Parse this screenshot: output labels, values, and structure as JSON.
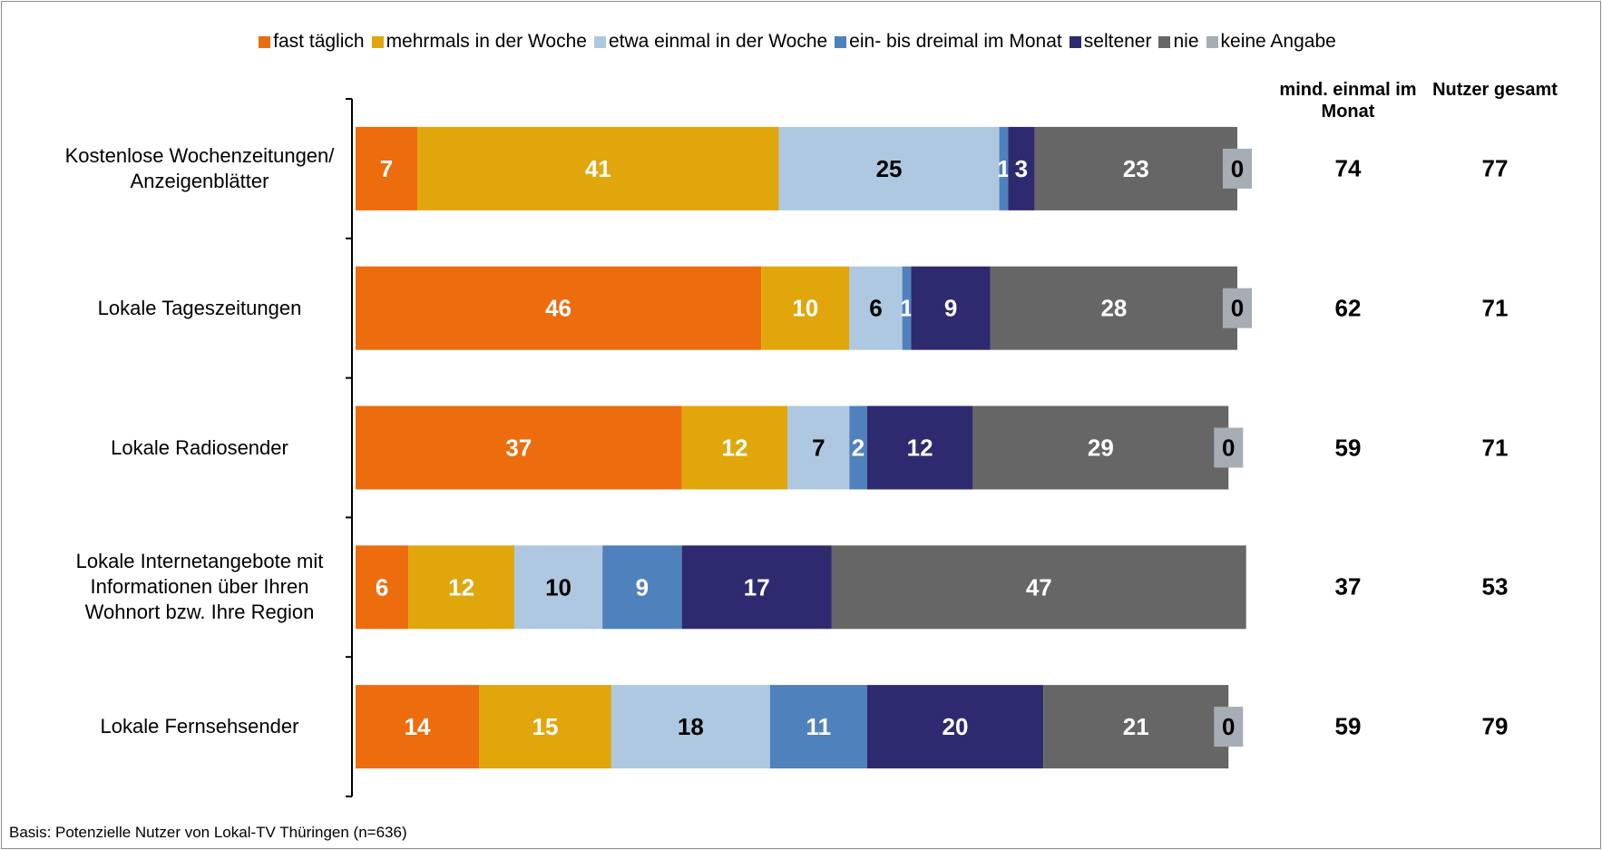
{
  "chart_data": {
    "type": "stacked_bar_horizontal",
    "categories": [
      "Kostenlose Wochenzeitungen/ Anzeigenblätter",
      "Lokale Tageszeitungen",
      "Lokale Radiosender",
      "Lokale Internetangebote mit Informationen über Ihren Wohnort bzw. Ihre Region",
      "Lokale Fernsehsender"
    ],
    "xlim": [
      0,
      100
    ],
    "series": [
      {
        "name": "fast täglich",
        "color": "#ec6c0e",
        "label_color": "#ffffff",
        "values": [
          7,
          46,
          37,
          6,
          14
        ]
      },
      {
        "name": "mehrmals in der Woche",
        "color": "#e0a60b",
        "label_color": "#ffffff",
        "values": [
          41,
          10,
          12,
          12,
          15
        ]
      },
      {
        "name": "etwa einmal in der Woche",
        "color": "#adc8e0",
        "label_color": "#000000",
        "values": [
          25,
          6,
          7,
          10,
          18
        ]
      },
      {
        "name": "ein- bis dreimal im Monat",
        "color": "#4f81bd",
        "label_color": "#ffffff",
        "values": [
          1,
          1,
          2,
          9,
          11
        ]
      },
      {
        "name": "seltener",
        "color": "#2e2a6f",
        "label_color": "#ffffff",
        "values": [
          3,
          9,
          12,
          17,
          20
        ]
      },
      {
        "name": "nie",
        "color": "#666666",
        "label_color": "#ffffff",
        "values": [
          23,
          28,
          29,
          47,
          21
        ]
      },
      {
        "name": "keine Angabe",
        "color": "#a6adb4",
        "label_color": "#000000",
        "values": [
          0,
          0,
          0,
          null,
          0
        ]
      }
    ],
    "columns": [
      {
        "header": "mind. einmal im Monat",
        "values": [
          74,
          62,
          59,
          37,
          59
        ]
      },
      {
        "header": "Nutzer gesamt",
        "values": [
          77,
          71,
          71,
          53,
          79
        ]
      }
    ],
    "footnote": "Basis: Potenzielle Nutzer von Lokal-TV Thüringen (n=636)"
  }
}
